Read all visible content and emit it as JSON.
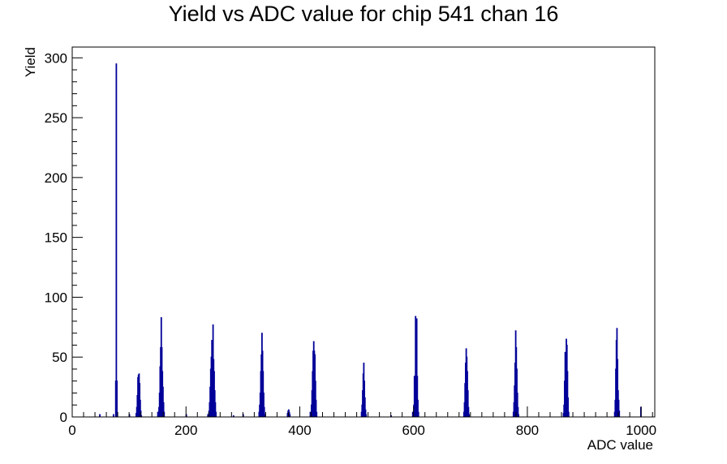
{
  "chart_data": {
    "type": "bar",
    "title": "Yield vs ADC value for chip 541 chan 16",
    "xlabel": "ADC value",
    "ylabel": "Yield",
    "xlim": [
      0,
      1024
    ],
    "ylim": [
      0,
      309
    ],
    "x_ticks": [
      0,
      200,
      400,
      600,
      800,
      1000
    ],
    "y_ticks": [
      0,
      50,
      100,
      150,
      200,
      250,
      300
    ],
    "grid": false,
    "line_color": "#000099",
    "bins": [
      [
        48,
        2
      ],
      [
        72,
        2
      ],
      [
        76,
        30
      ],
      [
        77,
        295
      ],
      [
        78,
        30
      ],
      [
        100,
        2
      ],
      [
        112,
        3
      ],
      [
        113,
        8
      ],
      [
        114,
        18
      ],
      [
        115,
        33
      ],
      [
        116,
        35
      ],
      [
        117,
        36
      ],
      [
        118,
        28
      ],
      [
        119,
        14
      ],
      [
        120,
        5
      ],
      [
        121,
        1
      ],
      [
        150,
        4
      ],
      [
        152,
        8
      ],
      [
        153,
        20
      ],
      [
        154,
        42
      ],
      [
        155,
        58
      ],
      [
        156,
        83
      ],
      [
        157,
        58
      ],
      [
        158,
        38
      ],
      [
        159,
        25
      ],
      [
        160,
        12
      ],
      [
        161,
        4
      ],
      [
        200,
        2
      ],
      [
        238,
        2
      ],
      [
        240,
        5
      ],
      [
        241,
        12
      ],
      [
        242,
        25
      ],
      [
        243,
        40
      ],
      [
        244,
        50
      ],
      [
        245,
        64
      ],
      [
        246,
        52
      ],
      [
        247,
        77
      ],
      [
        248,
        48
      ],
      [
        249,
        38
      ],
      [
        250,
        22
      ],
      [
        251,
        12
      ],
      [
        252,
        4
      ],
      [
        283,
        1
      ],
      [
        300,
        2
      ],
      [
        328,
        4
      ],
      [
        329,
        10
      ],
      [
        330,
        20
      ],
      [
        331,
        38
      ],
      [
        332,
        52
      ],
      [
        333,
        70
      ],
      [
        334,
        55
      ],
      [
        335,
        38
      ],
      [
        336,
        20
      ],
      [
        337,
        8
      ],
      [
        338,
        2
      ],
      [
        378,
        3
      ],
      [
        379,
        5
      ],
      [
        380,
        6
      ],
      [
        381,
        4
      ],
      [
        382,
        2
      ],
      [
        418,
        4
      ],
      [
        420,
        10
      ],
      [
        421,
        22
      ],
      [
        422,
        38
      ],
      [
        423,
        55
      ],
      [
        424,
        63
      ],
      [
        425,
        55
      ],
      [
        426,
        52
      ],
      [
        427,
        30
      ],
      [
        428,
        14
      ],
      [
        429,
        4
      ],
      [
        508,
        4
      ],
      [
        509,
        10
      ],
      [
        510,
        22
      ],
      [
        511,
        36
      ],
      [
        512,
        45
      ],
      [
        513,
        30
      ],
      [
        514,
        16
      ],
      [
        515,
        6
      ],
      [
        516,
        2
      ],
      [
        560,
        1
      ],
      [
        598,
        4
      ],
      [
        600,
        10
      ],
      [
        601,
        34
      ],
      [
        602,
        30
      ],
      [
        603,
        84
      ],
      [
        604,
        20
      ],
      [
        605,
        82
      ],
      [
        606,
        34
      ],
      [
        607,
        14
      ],
      [
        608,
        4
      ],
      [
        688,
        4
      ],
      [
        689,
        12
      ],
      [
        690,
        28
      ],
      [
        691,
        45
      ],
      [
        692,
        57
      ],
      [
        693,
        50
      ],
      [
        694,
        38
      ],
      [
        695,
        22
      ],
      [
        696,
        8
      ],
      [
        697,
        2
      ],
      [
        775,
        4
      ],
      [
        776,
        12
      ],
      [
        777,
        26
      ],
      [
        778,
        45
      ],
      [
        779,
        72
      ],
      [
        780,
        58
      ],
      [
        781,
        40
      ],
      [
        782,
        20
      ],
      [
        783,
        8
      ],
      [
        784,
        2
      ],
      [
        863,
        3
      ],
      [
        864,
        10
      ],
      [
        865,
        30
      ],
      [
        866,
        54
      ],
      [
        867,
        42
      ],
      [
        868,
        65
      ],
      [
        869,
        60
      ],
      [
        870,
        38
      ],
      [
        871,
        16
      ],
      [
        872,
        4
      ],
      [
        953,
        4
      ],
      [
        954,
        14
      ],
      [
        955,
        40
      ],
      [
        956,
        64
      ],
      [
        957,
        74
      ],
      [
        958,
        48
      ],
      [
        959,
        22
      ],
      [
        960,
        14
      ],
      [
        961,
        5
      ],
      [
        999,
        8
      ]
    ]
  }
}
